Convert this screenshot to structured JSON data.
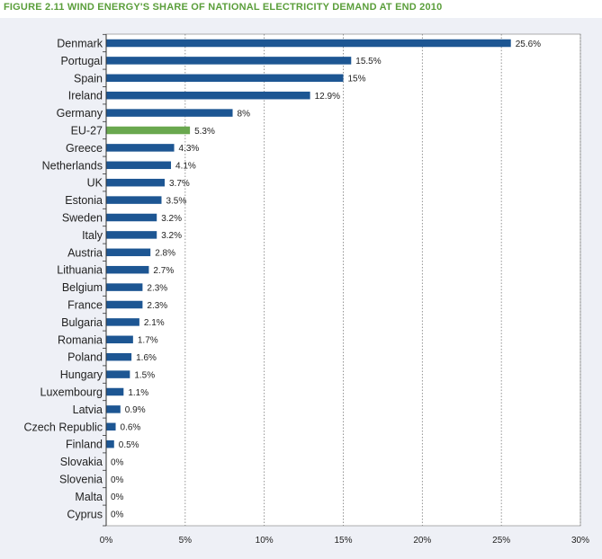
{
  "figure_title": "FIGURE 2.11 WIND ENERGY'S SHARE OF NATIONAL ELECTRICITY DEMAND AT END 2010",
  "colors": {
    "bar": "#1d5693",
    "highlight_bar": "#6aa84f",
    "title": "#5a9e3a",
    "panel_bg": "#eef0f6"
  },
  "chart_data": {
    "type": "bar",
    "orientation": "horizontal",
    "title": "FIGURE 2.11 WIND ENERGY'S SHARE OF NATIONAL ELECTRICITY DEMAND AT END 2010",
    "categories": [
      "Denmark",
      "Portugal",
      "Spain",
      "Ireland",
      "Germany",
      "EU-27",
      "Greece",
      "Netherlands",
      "UK",
      "Estonia",
      "Sweden",
      "Italy",
      "Austria",
      "Lithuania",
      "Belgium",
      "France",
      "Bulgaria",
      "Romania",
      "Poland",
      "Hungary",
      "Luxembourg",
      "Latvia",
      "Czech Republic",
      "Finland",
      "Slovakia",
      "Slovenia",
      "Malta",
      "Cyprus"
    ],
    "values": [
      25.6,
      15.5,
      15,
      12.9,
      8,
      5.3,
      4.3,
      4.1,
      3.7,
      3.5,
      3.2,
      3.2,
      2.8,
      2.7,
      2.3,
      2.3,
      2.1,
      1.7,
      1.6,
      1.5,
      1.1,
      0.9,
      0.6,
      0.5,
      0,
      0,
      0,
      0
    ],
    "value_labels": [
      "25.6%",
      "15.5%",
      "15%",
      "12.9%",
      "8%",
      "5.3%",
      "4.3%",
      "4.1%",
      "3.7%",
      "3.5%",
      "3.2%",
      "3.2%",
      "2.8%",
      "2.7%",
      "2.3%",
      "2.3%",
      "2.1%",
      "1.7%",
      "1.6%",
      "1.5%",
      "1.1%",
      "0.9%",
      "0.6%",
      "0.5%",
      "0%",
      "0%",
      "0%",
      "0%"
    ],
    "highlight": "EU-27",
    "xlim": [
      0,
      30
    ],
    "xticks": [
      0,
      5,
      10,
      15,
      20,
      25,
      30
    ],
    "xtick_labels": [
      "0%",
      "5%",
      "10%",
      "15%",
      "20%",
      "25%",
      "30%"
    ],
    "xlabel": "",
    "ylabel": "",
    "grid": "vertical dotted"
  }
}
